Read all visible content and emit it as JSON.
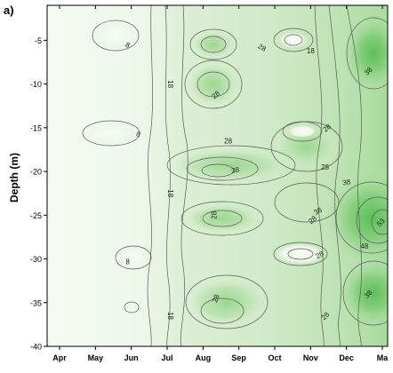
{
  "panel_label": "a)",
  "chart_data": {
    "type": "contour",
    "title": "",
    "xlabel": "",
    "ylabel": "Depth (m)",
    "x_categories": [
      "Apr",
      "May",
      "Jun",
      "Jul",
      "Aug",
      "Sep",
      "Oct",
      "Nov",
      "Dec",
      "Ma"
    ],
    "yticks": [
      -5,
      -10,
      -15,
      -20,
      -25,
      -30,
      -35,
      -40
    ],
    "ylim": [
      -40,
      -1
    ],
    "contour_labels": [
      {
        "text": "8",
        "month": 1.9,
        "depth": -5.5,
        "rot": 25
      },
      {
        "text": "8",
        "month": 2.2,
        "depth": -15.7,
        "rot": 20
      },
      {
        "text": "8",
        "month": 1.9,
        "depth": -30.3,
        "rot": 0
      },
      {
        "text": "18",
        "month": 3.1,
        "depth": -10.0,
        "rot": 90
      },
      {
        "text": "18",
        "month": 3.1,
        "depth": -22.5,
        "rot": 90
      },
      {
        "text": "18",
        "month": 3.1,
        "depth": -36.5,
        "rot": 90
      },
      {
        "text": "18",
        "month": 7.0,
        "depth": -6.2,
        "rot": 0
      },
      {
        "text": "28",
        "month": 4.35,
        "depth": -11.2,
        "rot": -40
      },
      {
        "text": "28",
        "month": 4.7,
        "depth": -16.5,
        "rot": 0
      },
      {
        "text": "28",
        "month": 5.65,
        "depth": -5.8,
        "rot": 30
      },
      {
        "text": "28",
        "month": 4.3,
        "depth": -25.0,
        "rot": -90
      },
      {
        "text": "28",
        "month": 4.35,
        "depth": -34.5,
        "rot": -70
      },
      {
        "text": "28",
        "month": 7.45,
        "depth": -15.0,
        "rot": -40
      },
      {
        "text": "28",
        "month": 7.4,
        "depth": -19.5,
        "rot": 0
      },
      {
        "text": "28",
        "month": 7.05,
        "depth": -25.5,
        "rot": -40
      },
      {
        "text": "28",
        "month": 7.25,
        "depth": -29.5,
        "rot": -30
      },
      {
        "text": "28",
        "month": 7.4,
        "depth": -36.5,
        "rot": -45
      },
      {
        "text": "38",
        "month": 4.9,
        "depth": -19.8,
        "rot": -10
      },
      {
        "text": "38",
        "month": 8.0,
        "depth": -21.2,
        "rot": -10
      },
      {
        "text": "38",
        "month": 7.2,
        "depth": -24.5,
        "rot": -30
      },
      {
        "text": "38",
        "month": 8.6,
        "depth": -8.5,
        "rot": -45
      },
      {
        "text": "38",
        "month": 8.6,
        "depth": -34.0,
        "rot": -45
      },
      {
        "text": "48",
        "month": 8.5,
        "depth": -28.5,
        "rot": 0
      },
      {
        "text": "53",
        "month": 8.95,
        "depth": -25.8,
        "rot": -45
      }
    ],
    "colors": {
      "low": "#f7fbf4",
      "mid": "#cfe9c5",
      "high": "#8fd486",
      "peak": "#5cbf5a",
      "contour_line": "#5a5a5a",
      "axis": "#000000"
    }
  }
}
